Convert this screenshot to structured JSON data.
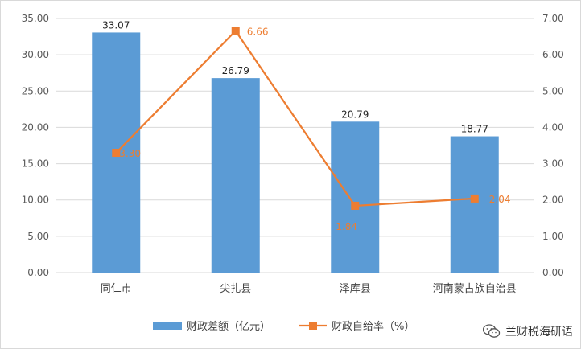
{
  "chart_data": {
    "type": "bar+line",
    "categories": [
      "同仁市",
      "尖扎县",
      "泽库县",
      "河南蒙古族自治县"
    ],
    "series": [
      {
        "name": "财政差额（亿元）",
        "type": "bar",
        "axis": "left",
        "values": [
          33.07,
          26.79,
          20.79,
          18.77
        ],
        "labels": [
          "33.07",
          "26.79",
          "20.79",
          "18.77"
        ],
        "color": "#5b9bd5"
      },
      {
        "name": "财政自给率（%）",
        "type": "line",
        "axis": "right",
        "values": [
          3.3,
          6.66,
          1.84,
          2.04
        ],
        "labels": [
          "3.30",
          "6.66",
          "1.84",
          "2.04"
        ],
        "color": "#ed7d31"
      }
    ],
    "left_axis": {
      "min": 0,
      "max": 35,
      "step": 5,
      "tick_labels": [
        "0.00",
        "5.00",
        "10.00",
        "15.00",
        "20.00",
        "25.00",
        "30.00",
        "35.00"
      ]
    },
    "right_axis": {
      "min": 0,
      "max": 7,
      "step": 1,
      "tick_labels": [
        "0.00",
        "1.00",
        "2.00",
        "3.00",
        "4.00",
        "5.00",
        "6.00",
        "7.00"
      ]
    },
    "grid": true,
    "legend_position": "bottom"
  },
  "watermark": {
    "text": "兰财税海研语",
    "icon": "wechat-icon"
  }
}
